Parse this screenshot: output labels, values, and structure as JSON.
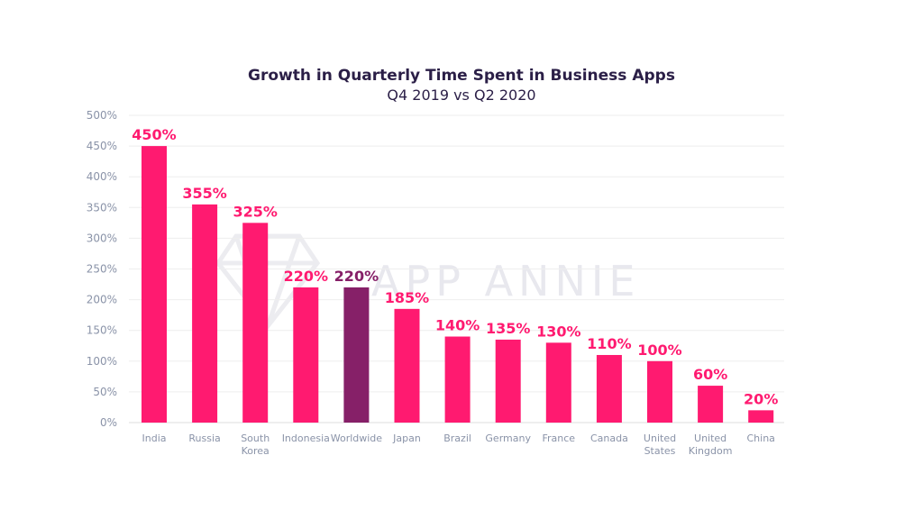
{
  "chart_data": {
    "type": "bar",
    "title": "Growth in Quarterly Time Spent in Business Apps",
    "subtitle": "Q4 2019 vs Q2 2020",
    "categories": [
      [
        "India"
      ],
      [
        "Russia"
      ],
      [
        "South",
        "Korea"
      ],
      [
        "Indonesia"
      ],
      [
        "Worldwide"
      ],
      [
        "Japan"
      ],
      [
        "Brazil"
      ],
      [
        "Germany"
      ],
      [
        "France"
      ],
      [
        "Canada"
      ],
      [
        "United",
        "States"
      ],
      [
        "United",
        "Kingdom"
      ],
      [
        "China"
      ]
    ],
    "values": [
      450,
      355,
      325,
      220,
      220,
      185,
      140,
      135,
      130,
      110,
      100,
      60,
      20
    ],
    "data_labels": [
      "450%",
      "355%",
      "325%",
      "220%",
      "220%",
      "185%",
      "140%",
      "135%",
      "130%",
      "110%",
      "100%",
      "60%",
      "20%"
    ],
    "ylim": [
      0,
      500
    ],
    "yticks": [
      0,
      50,
      100,
      150,
      200,
      250,
      300,
      350,
      400,
      450,
      500
    ],
    "ytick_labels": [
      "0%",
      "50%",
      "100%",
      "150%",
      "200%",
      "250%",
      "300%",
      "350%",
      "400%",
      "450%",
      "500%"
    ],
    "highlight_index": 4,
    "colors": {
      "bar": "#ff1a70",
      "highlight": "#862068",
      "label": "#ff1a70",
      "highlight_label": "#862068",
      "grid": "#eeeeee",
      "axis_text": "#8a93a8"
    },
    "watermark": "APP ANNIE",
    "xlabel": "",
    "ylabel": ""
  }
}
